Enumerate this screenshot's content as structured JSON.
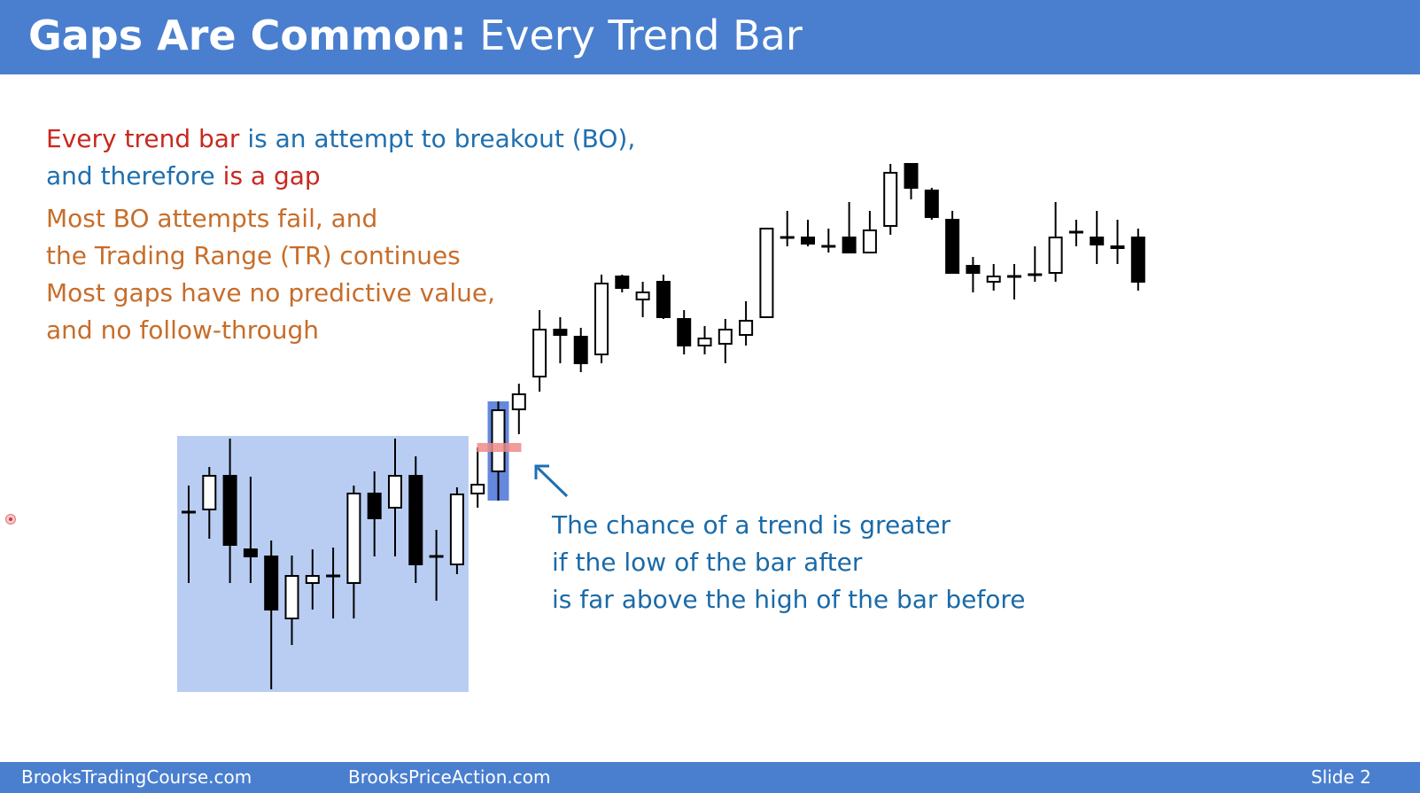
{
  "header": {
    "title_bold": "Gaps Are Common:",
    "title_rest": " Every Trend Bar",
    "background_color": "#4a7fcf"
  },
  "text": {
    "line1_red": "Every trend bar",
    "line1_blue": " is an attempt to breakout (BO),",
    "line2_blue": "and therefore",
    "line2_red": " is a gap",
    "orange_lines": [
      "Most BO attempts fail, and",
      "the Trading Range (TR) continues",
      "Most gaps have no predictive value,",
      "and no follow-through"
    ],
    "note_lines": [
      "The chance of a trend is greater",
      "if the low of the bar after",
      "is far above the high of the bar before"
    ]
  },
  "footer": {
    "site1": "BrooksTradingCourse.com",
    "site2": "BrooksPriceAction.com",
    "slide": "Slide  2"
  },
  "chart_data": {
    "type": "candlestick",
    "axes_visible": false,
    "grid": false,
    "colors": {
      "bull_body": "#ffffff",
      "bear_body": "#000000",
      "range_highlight": "#b9cdf3",
      "trend_bar_highlight": "#4a72d8",
      "gap_marker": "#f08a8a",
      "arrow": "#1f6fb0"
    },
    "trading_range_highlight_bars": [
      0,
      13
    ],
    "trend_bar_index": 15,
    "gap_marker_value": 505,
    "bars": [
      {
        "o": 578,
        "h": 548,
        "l": 658,
        "c": 578,
        "bull": false
      },
      {
        "o": 575,
        "h": 527,
        "l": 608,
        "c": 537,
        "bull": true
      },
      {
        "o": 537,
        "h": 495,
        "l": 658,
        "c": 615,
        "bull": false
      },
      {
        "o": 620,
        "h": 538,
        "l": 658,
        "c": 628,
        "bull": false
      },
      {
        "o": 628,
        "h": 610,
        "l": 778,
        "c": 688,
        "bull": false
      },
      {
        "o": 698,
        "h": 627,
        "l": 728,
        "c": 650,
        "bull": true
      },
      {
        "o": 658,
        "h": 620,
        "l": 688,
        "c": 650,
        "bull": true
      },
      {
        "o": 650,
        "h": 618,
        "l": 698,
        "c": 650,
        "bull": true
      },
      {
        "o": 658,
        "h": 548,
        "l": 698,
        "c": 557,
        "bull": true
      },
      {
        "o": 557,
        "h": 532,
        "l": 628,
        "c": 585,
        "bull": false
      },
      {
        "o": 573,
        "h": 495,
        "l": 628,
        "c": 537,
        "bull": true
      },
      {
        "o": 537,
        "h": 515,
        "l": 658,
        "c": 637,
        "bull": false
      },
      {
        "o": 628,
        "h": 598,
        "l": 678,
        "c": 628,
        "bull": false
      },
      {
        "o": 637,
        "h": 550,
        "l": 648,
        "c": 558,
        "bull": true
      },
      {
        "o": 557,
        "h": 505,
        "l": 573,
        "c": 547,
        "bull": true
      },
      {
        "o": 532,
        "h": 453,
        "l": 565,
        "c": 463,
        "bull": true
      },
      {
        "o": 462,
        "h": 433,
        "l": 490,
        "c": 445,
        "bull": true
      },
      {
        "o": 425,
        "h": 350,
        "l": 442,
        "c": 372,
        "bull": true
      },
      {
        "o": 372,
        "h": 358,
        "l": 410,
        "c": 378,
        "bull": false
      },
      {
        "o": 380,
        "h": 370,
        "l": 420,
        "c": 410,
        "bull": false
      },
      {
        "o": 400,
        "h": 310,
        "l": 410,
        "c": 320,
        "bull": true
      },
      {
        "o": 312,
        "h": 310,
        "l": 330,
        "c": 325,
        "bull": false
      },
      {
        "o": 330,
        "h": 318,
        "l": 358,
        "c": 338,
        "bull": true
      },
      {
        "o": 318,
        "h": 310,
        "l": 360,
        "c": 358,
        "bull": false
      },
      {
        "o": 360,
        "h": 350,
        "l": 400,
        "c": 390,
        "bull": false
      },
      {
        "o": 390,
        "h": 368,
        "l": 400,
        "c": 382,
        "bull": true
      },
      {
        "o": 388,
        "h": 360,
        "l": 410,
        "c": 372,
        "bull": true
      },
      {
        "o": 378,
        "h": 340,
        "l": 390,
        "c": 362,
        "bull": true
      },
      {
        "o": 358,
        "h": 258,
        "l": 358,
        "c": 258,
        "bull": true
      },
      {
        "o": 268,
        "h": 238,
        "l": 278,
        "c": 268,
        "bull": true
      },
      {
        "o": 268,
        "h": 248,
        "l": 278,
        "c": 275,
        "bull": false
      },
      {
        "o": 278,
        "h": 258,
        "l": 285,
        "c": 278,
        "bull": true
      },
      {
        "o": 268,
        "h": 228,
        "l": 285,
        "c": 285,
        "bull": false
      },
      {
        "o": 285,
        "h": 238,
        "l": 285,
        "c": 260,
        "bull": true
      },
      {
        "o": 255,
        "h": 185,
        "l": 265,
        "c": 195,
        "bull": true
      },
      {
        "o": 185,
        "h": 185,
        "l": 225,
        "c": 212,
        "bull": false
      },
      {
        "o": 215,
        "h": 212,
        "l": 248,
        "c": 245,
        "bull": false
      },
      {
        "o": 248,
        "h": 238,
        "l": 308,
        "c": 308,
        "bull": false
      },
      {
        "o": 300,
        "h": 290,
        "l": 330,
        "c": 308,
        "bull": false
      },
      {
        "o": 312,
        "h": 298,
        "l": 328,
        "c": 318,
        "bull": true
      },
      {
        "o": 312,
        "h": 298,
        "l": 338,
        "c": 312,
        "bull": true
      },
      {
        "o": 310,
        "h": 278,
        "l": 318,
        "c": 310,
        "bull": true
      },
      {
        "o": 308,
        "h": 228,
        "l": 318,
        "c": 268,
        "bull": true
      },
      {
        "o": 262,
        "h": 248,
        "l": 278,
        "c": 262,
        "bull": false
      },
      {
        "o": 268,
        "h": 238,
        "l": 298,
        "c": 276,
        "bull": false
      },
      {
        "o": 278,
        "h": 248,
        "l": 298,
        "c": 280,
        "bull": true
      },
      {
        "o": 268,
        "h": 258,
        "l": 328,
        "c": 318,
        "bull": false
      }
    ]
  }
}
